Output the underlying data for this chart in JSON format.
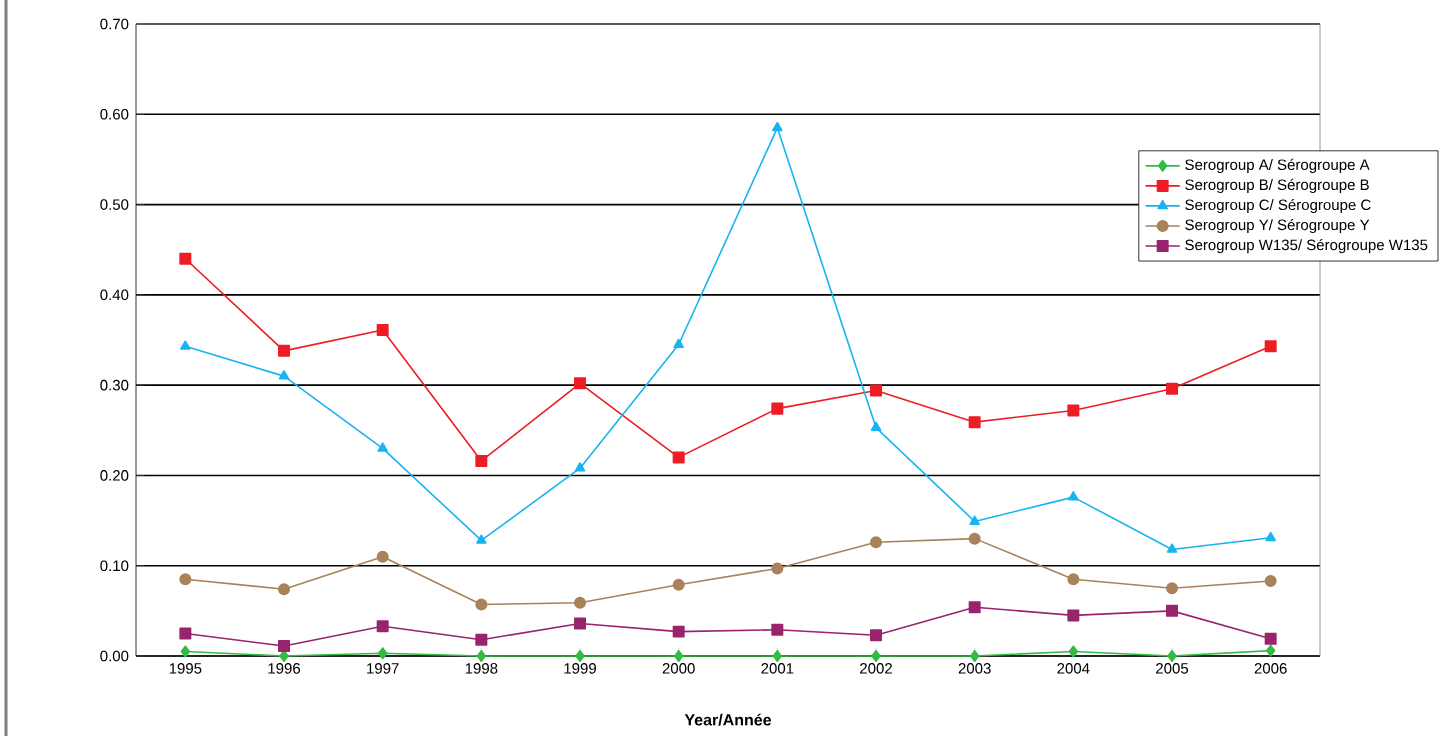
{
  "chart_data": {
    "type": "line",
    "xlabel": "Year/Année",
    "categories": [
      "1995",
      "1996",
      "1997",
      "1998",
      "1999",
      "2000",
      "2001",
      "2002",
      "2003",
      "2004",
      "2005",
      "2006"
    ],
    "ylim": [
      0,
      0.7
    ],
    "yticks": [
      {
        "value": 0,
        "label": "0.00"
      },
      {
        "value": 0.1,
        "label": "0.10"
      },
      {
        "value": 0.2,
        "label": "0.20"
      },
      {
        "value": 0.3,
        "label": "0.30"
      },
      {
        "value": 0.4,
        "label": "0.40"
      },
      {
        "value": 0.5,
        "label": "0.50"
      },
      {
        "value": 0.6,
        "label": "0.60"
      },
      {
        "value": 0.7,
        "label": "0.70"
      }
    ],
    "grid": "y",
    "legend": "top right",
    "series": [
      {
        "name": "Serogroup A/ Sérogroupe A",
        "color": "#33bb44",
        "marker": "diamond",
        "values": [
          0.005,
          0,
          0.003,
          0,
          0,
          0,
          0,
          0,
          0,
          0.005,
          0,
          0.006
        ]
      },
      {
        "name": "Serogroup B/ Sérogroupe B",
        "color": "#ee1c24",
        "marker": "square",
        "values": [
          0.44,
          0.338,
          0.361,
          0.216,
          0.302,
          0.22,
          0.274,
          0.294,
          0.259,
          0.272,
          0.296,
          0.343
        ]
      },
      {
        "name": "Serogroup C/ Sérogroupe C",
        "color": "#18b4ef",
        "marker": "triangle",
        "values": [
          0.343,
          0.31,
          0.23,
          0.128,
          0.208,
          0.345,
          0.585,
          0.253,
          0.149,
          0.176,
          0.118,
          0.131
        ]
      },
      {
        "name": "Serogroup Y/ Sérogroupe Y",
        "color": "#a9825a",
        "marker": "circle",
        "values": [
          0.085,
          0.074,
          0.11,
          0.057,
          0.059,
          0.079,
          0.097,
          0.126,
          0.13,
          0.085,
          0.075,
          0.083
        ]
      },
      {
        "name": "Serogroup W135/ Sérogroupe W135",
        "color": "#99246e",
        "marker": "square",
        "values": [
          0.025,
          0.011,
          0.033,
          0.018,
          0.036,
          0.027,
          0.029,
          0.023,
          0.054,
          0.045,
          0.05,
          0.019
        ]
      }
    ]
  }
}
